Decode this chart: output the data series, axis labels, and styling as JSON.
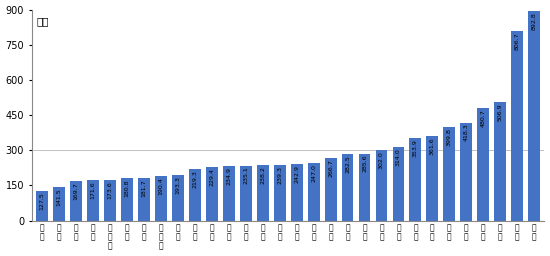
{
  "categories": [
    "新\n疆",
    "吉\n林",
    "甘\n肃",
    "辽\n宁",
    "黑\n龙\n江",
    "陕\n西",
    "广\n西",
    "内\n蒙\n古",
    "四\n川",
    "江\n西",
    "湖\n南",
    "湖\n北",
    "河\n南",
    "山\n西",
    "重\n庆",
    "云\n南",
    "贵\n州",
    "宁\n夏",
    "海\n南",
    "青\n海",
    "山\n东",
    "安\n徽",
    "河\n北",
    "天\n津",
    "广\n东",
    "福\n建",
    "浙\n江",
    "江\n苏",
    "上\n海",
    "北\n京"
  ],
  "values": [
    127.5,
    141.5,
    169.7,
    171.6,
    173.6,
    180.8,
    181.7,
    190.4,
    193.3,
    219.3,
    229.4,
    234.9,
    235.1,
    238.2,
    239.3,
    242.9,
    247.0,
    266.7,
    282.5,
    285.6,
    302.0,
    314.0,
    353.9,
    361.6,
    399.8,
    418.3,
    480.7,
    506.9,
    806.7,
    892.8
  ],
  "bar_color": "#4472C4",
  "ylabel": "万元",
  "ylim": [
    0,
    900
  ],
  "yticks": [
    0,
    150,
    300,
    450,
    600,
    750,
    900
  ],
  "value_labels": [
    "127.5",
    "141.5",
    "169.7",
    "171.6",
    "173.6",
    "180.8",
    "181.7",
    "190.4",
    "193.3",
    "219.3",
    "229.4",
    "234.9",
    "235.1",
    "238.2",
    "239.3",
    "242.9",
    "247.0",
    "266.7",
    "282.5",
    "285.6",
    "302.0",
    "314.0",
    "353.9",
    "361.6",
    "399.8",
    "418.3",
    "480.7",
    "506.9",
    "806.7",
    "892.8"
  ]
}
